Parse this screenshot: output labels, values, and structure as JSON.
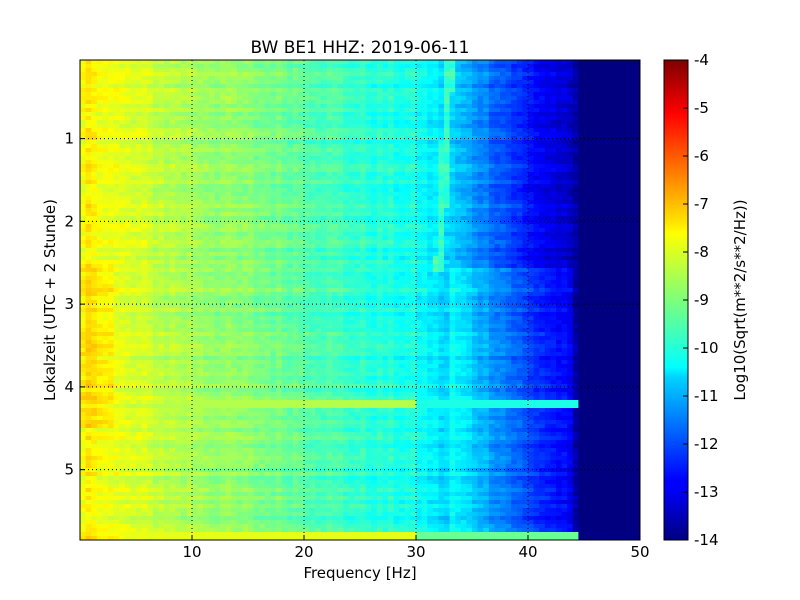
{
  "chart_data": {
    "type": "heatmap",
    "title": "BW BE1 HHZ: 2019-06-11",
    "xlabel": "Frequency [Hz]",
    "ylabel": "Lokalzeit (UTC + 2 Stunde)",
    "xlim": [
      0,
      50
    ],
    "ylim": [
      5.85,
      0.05
    ],
    "xticks": [
      "10",
      "20",
      "30",
      "40",
      "50"
    ],
    "yticks": [
      "1",
      "2",
      "3",
      "4",
      "5"
    ],
    "grid": true,
    "colormap": "jet",
    "colorbar": {
      "label": "Log10(Sqrt(m**2/s**2/Hz))",
      "range": [
        -14,
        -4
      ],
      "ticks": [
        "-4",
        "-5",
        "-6",
        "-7",
        "-8",
        "-9",
        "-10",
        "-11",
        "-12",
        "-13",
        "-14"
      ]
    },
    "spectral_profile": {
      "frequency_hz": [
        0,
        1,
        3,
        10,
        20,
        25,
        30,
        33,
        35,
        38,
        40,
        43,
        45,
        50
      ],
      "log10_amplitude": [
        -8.0,
        -7.6,
        -8.0,
        -8.6,
        -9.3,
        -9.8,
        -10.1,
        -10.7,
        -11.2,
        -12.0,
        -12.6,
        -13.2,
        -14.0,
        -14.0
      ]
    },
    "features": {
      "tonal_line_hz": 32,
      "broadband_event_hour": 4.22,
      "end_event_hour": 5.8
    }
  }
}
